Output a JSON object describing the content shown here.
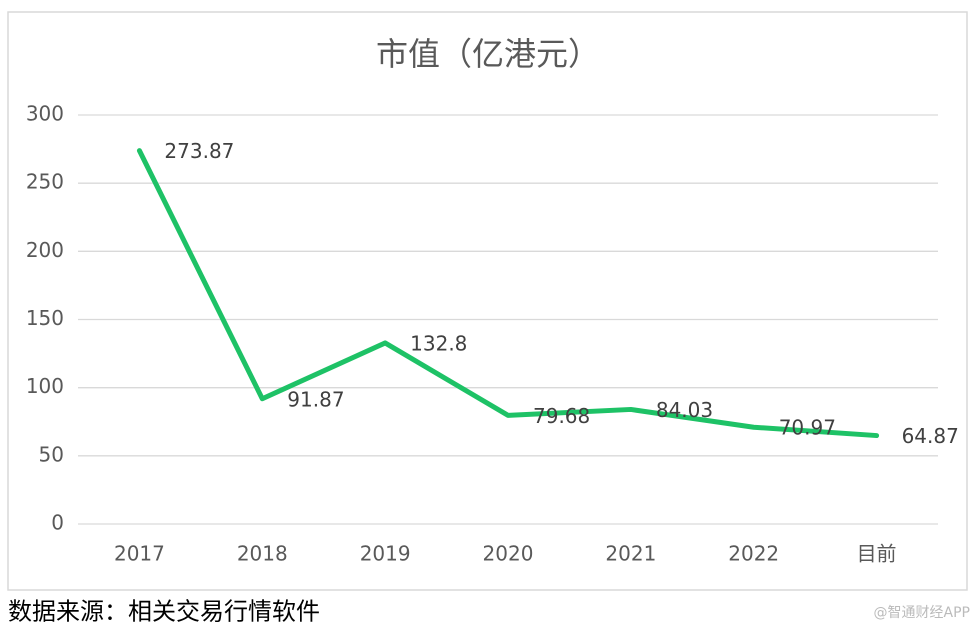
{
  "chart_data": {
    "type": "line",
    "title": "市值（亿港元）",
    "categories": [
      "2017",
      "2018",
      "2019",
      "2020",
      "2021",
      "2022",
      "目前"
    ],
    "series": [
      {
        "name": "市值",
        "color": "#1ec266",
        "values": [
          273.87,
          91.87,
          132.8,
          79.68,
          84.03,
          70.97,
          64.87
        ]
      }
    ],
    "ylim": [
      0,
      300
    ],
    "yticks": [
      0,
      50,
      100,
      150,
      200,
      250,
      300
    ],
    "grid": true
  },
  "source": "数据来源：相关交易行情软件",
  "watermark": "@智通财经APP"
}
